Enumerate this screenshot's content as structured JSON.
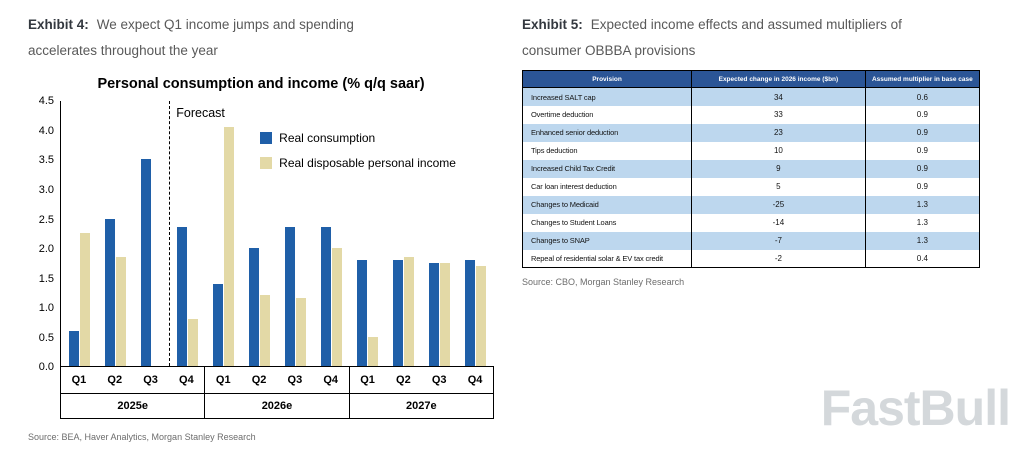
{
  "exhibit4": {
    "label": "Exhibit 4:",
    "title_line1": "We expect Q1 income jumps and spending",
    "title_line2": "accelerates throughout the year",
    "source": "Source: BEA, Haver Analytics, Morgan Stanley Research"
  },
  "exhibit5": {
    "label": "Exhibit 5:",
    "title_line1": "Expected income effects and assumed multipliers of",
    "title_line2": "consumer OBBBA provisions",
    "source": "Source: CBO, Morgan Stanley Research"
  },
  "chart_data": [
    {
      "type": "bar",
      "title": "Personal consumption and income (% q/q saar)",
      "ylabel": "",
      "xlabel": "",
      "ylim": [
        0,
        4.5
      ],
      "ytick_step": 0.5,
      "grid": false,
      "legend_position": "inside-upper-right",
      "forecast_label": "Forecast",
      "forecast_line_after_category_index": 2,
      "categories": [
        "Q1",
        "Q2",
        "Q3",
        "Q4",
        "Q1",
        "Q2",
        "Q3",
        "Q4",
        "Q1",
        "Q2",
        "Q3",
        "Q4"
      ],
      "year_groups": [
        {
          "label": "2025e",
          "quarters": [
            "Q1",
            "Q2",
            "Q3",
            "Q4"
          ]
        },
        {
          "label": "2026e",
          "quarters": [
            "Q1",
            "Q2",
            "Q3",
            "Q4"
          ]
        },
        {
          "label": "2027e",
          "quarters": [
            "Q1",
            "Q2",
            "Q3",
            "Q4"
          ]
        }
      ],
      "series": [
        {
          "name": "Real consumption",
          "color": "#1F5FA8",
          "values": [
            0.6,
            2.5,
            3.5,
            2.35,
            1.4,
            2.0,
            2.35,
            2.35,
            1.8,
            1.8,
            1.75,
            1.8
          ]
        },
        {
          "name": "Real disposable personal income",
          "color": "#E3D9A6",
          "values": [
            2.25,
            1.85,
            null,
            0.8,
            4.05,
            1.2,
            1.15,
            2.0,
            0.5,
            1.85,
            1.75,
            1.7
          ]
        }
      ]
    },
    {
      "type": "table",
      "header_bg": "#2B5596",
      "alt_row_bg": "#BDD7EE",
      "headers": [
        "Provision",
        "Expected change in 2026 income ($bn)",
        "Assumed multiplier in base case"
      ],
      "rows": [
        [
          "Increased SALT cap",
          "34",
          "0.6"
        ],
        [
          "Overtime deduction",
          "33",
          "0.9"
        ],
        [
          "Enhanced senior deduction",
          "23",
          "0.9"
        ],
        [
          "Tips deduction",
          "10",
          "0.9"
        ],
        [
          "Increased Child Tax Credit",
          "9",
          "0.9"
        ],
        [
          "Car loan interest deduction",
          "5",
          "0.9"
        ],
        [
          "Changes to Medicaid",
          "-25",
          "1.3"
        ],
        [
          "Changes to Student Loans",
          "-14",
          "1.3"
        ],
        [
          "Changes to SNAP",
          "-7",
          "1.3"
        ],
        [
          "Repeal of residential solar & EV tax credit",
          "-2",
          "0.4"
        ]
      ]
    }
  ],
  "watermark": "FastBull"
}
